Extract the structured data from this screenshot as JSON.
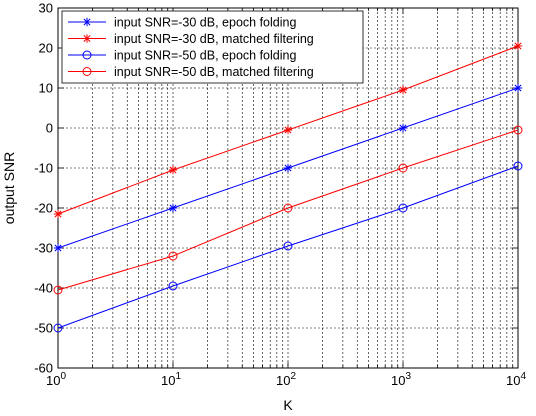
{
  "chart_data": {
    "type": "line",
    "xscale": "log",
    "xlabel": "K",
    "ylabel": "output SNR",
    "xlim": [
      1,
      10000
    ],
    "ylim": [
      -60,
      30
    ],
    "grid": true,
    "legend_position": "top-left",
    "x_ticks": [
      1,
      10,
      100,
      1000,
      10000
    ],
    "x_tick_labels": [
      {
        "base": "10",
        "exp": "0"
      },
      {
        "base": "10",
        "exp": "1"
      },
      {
        "base": "10",
        "exp": "2"
      },
      {
        "base": "10",
        "exp": "3"
      },
      {
        "base": "10",
        "exp": "4"
      }
    ],
    "y_ticks": [
      -60,
      -50,
      -40,
      -30,
      -20,
      -10,
      0,
      10,
      20,
      30
    ],
    "y_tick_labels": [
      "-60",
      "-50",
      "-40",
      "-30",
      "-20",
      "-10",
      "0",
      "10",
      "20",
      "30"
    ],
    "x": [
      1,
      10,
      100,
      1000,
      10000
    ],
    "series": [
      {
        "name": "input SNR=-30 dB, epoch folding",
        "values": [
          -30,
          -20,
          -10,
          0,
          10
        ],
        "color": "#0000ff",
        "marker": "asterisk"
      },
      {
        "name": "input SNR=-30 dB, matched filtering",
        "values": [
          -21.5,
          -10.5,
          -0.5,
          9.5,
          20.5
        ],
        "color": "#ff0000",
        "marker": "asterisk"
      },
      {
        "name": "input SNR=-50 dB, epoch folding",
        "values": [
          -50,
          -39.5,
          -29.5,
          -20,
          -9.5
        ],
        "color": "#0000ff",
        "marker": "circle"
      },
      {
        "name": "input SNR=-50 dB, matched filtering",
        "values": [
          -40.5,
          -32,
          -20,
          -10,
          -0.5
        ],
        "color": "#ff0000",
        "marker": "circle"
      }
    ]
  }
}
